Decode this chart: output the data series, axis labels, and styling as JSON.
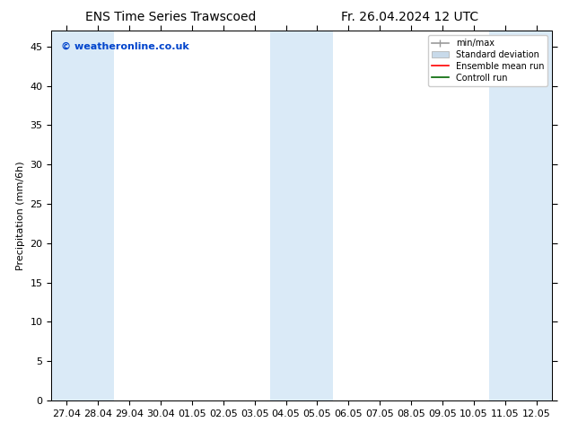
{
  "title_left": "ENS Time Series Trawscoed",
  "title_right": "Fr. 26.04.2024 12 UTC",
  "ylabel": "Precipitation (mm/6h)",
  "watermark": "© weatheronline.co.uk",
  "watermark_color": "#0044cc",
  "ylim": [
    0,
    47
  ],
  "yticks": [
    0,
    5,
    10,
    15,
    20,
    25,
    30,
    35,
    40,
    45
  ],
  "xtick_labels": [
    "27.04",
    "28.04",
    "29.04",
    "30.04",
    "01.05",
    "02.05",
    "03.05",
    "04.05",
    "05.05",
    "06.05",
    "07.05",
    "08.05",
    "09.05",
    "10.05",
    "11.05",
    "12.05"
  ],
  "bg_color": "#ffffff",
  "plot_bg_color": "#ffffff",
  "shaded_color": "#daeaf7",
  "shaded_bands_x": [
    0,
    1,
    7,
    8,
    14
  ],
  "legend_labels": [
    "min/max",
    "Standard deviation",
    "Ensemble mean run",
    "Controll run"
  ],
  "legend_minmax_color": "#999999",
  "legend_std_color": "#c8daea",
  "legend_ens_color": "#ff0000",
  "legend_ctrl_color": "#006600",
  "title_fontsize": 10,
  "ylabel_fontsize": 8,
  "tick_fontsize": 8,
  "legend_fontsize": 7
}
